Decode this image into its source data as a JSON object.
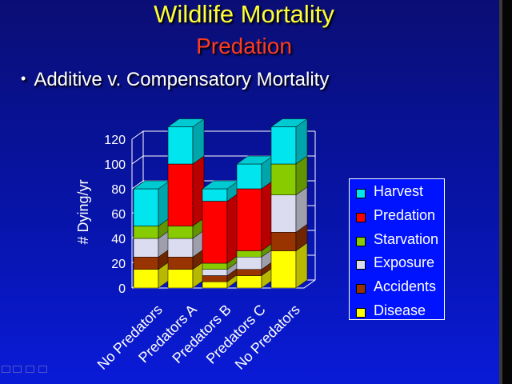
{
  "slide": {
    "title": "Wildlife Mortality",
    "subtitle": "Predation",
    "bullet": "Additive v. Compensatory Mortality"
  },
  "colors": {
    "title": "#ffff33",
    "subtitle": "#ff3b1e",
    "background": "#0714a8"
  },
  "chart_data": {
    "type": "bar",
    "stacked": true,
    "three_d": true,
    "ylabel": "# Dying/yr",
    "ylim": [
      0,
      120
    ],
    "yticks": [
      0,
      20,
      40,
      60,
      80,
      100,
      120
    ],
    "categories": [
      "No Predators",
      "Predators A",
      "Predators B",
      "Predators C",
      "No Predators"
    ],
    "series": [
      {
        "name": "Disease",
        "color": "#ffff00",
        "values": [
          15,
          15,
          5,
          10,
          30
        ]
      },
      {
        "name": "Accidents",
        "color": "#993300",
        "values": [
          10,
          10,
          5,
          5,
          15
        ]
      },
      {
        "name": "Exposure",
        "color": "#dcdcf0",
        "values": [
          15,
          15,
          5,
          10,
          30
        ]
      },
      {
        "name": "Starvation",
        "color": "#88cc00",
        "values": [
          10,
          10,
          5,
          5,
          25
        ]
      },
      {
        "name": "Predation",
        "color": "#ff0000",
        "values": [
          0,
          50,
          50,
          50,
          0
        ]
      },
      {
        "name": "Harvest",
        "color": "#00e5ee",
        "values": [
          30,
          30,
          10,
          20,
          30
        ]
      }
    ],
    "legend_position": "right",
    "legend_order": [
      "Harvest",
      "Predation",
      "Starvation",
      "Exposure",
      "Accidents",
      "Disease"
    ]
  }
}
